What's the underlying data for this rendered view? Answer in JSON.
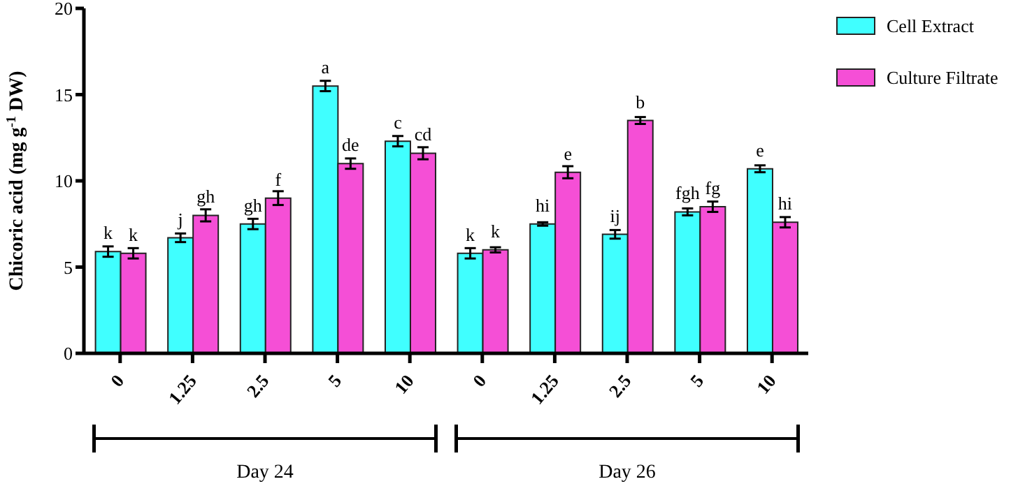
{
  "chart_data": {
    "type": "bar",
    "ylabel": "Chicoric acid (mg g$^{-1}$ DW)",
    "categories": [
      "0",
      "1.25",
      "2.5",
      "5",
      "10",
      "0",
      "1.25",
      "2.5",
      "5",
      "10"
    ],
    "series": [
      {
        "name": "Cell Extract",
        "color": "#40ffff",
        "values": [
          5.9,
          6.7,
          7.5,
          15.5,
          12.3,
          5.8,
          7.5,
          6.9,
          8.2,
          10.7
        ],
        "errors": [
          0.3,
          0.25,
          0.3,
          0.3,
          0.3,
          0.3,
          0.1,
          0.25,
          0.2,
          0.2
        ],
        "value_labels": [
          "k",
          "j",
          "gh",
          "a",
          "c",
          "k",
          "hi",
          "ij",
          "fgh",
          "e"
        ]
      },
      {
        "name": "Culture Filtrate",
        "color": "#f54fd6",
        "values": [
          5.8,
          8.0,
          9.0,
          11.0,
          11.6,
          6.0,
          10.5,
          13.5,
          8.5,
          7.6
        ],
        "errors": [
          0.3,
          0.35,
          0.4,
          0.3,
          0.35,
          0.15,
          0.35,
          0.2,
          0.3,
          0.3
        ],
        "value_labels": [
          "k",
          "gh",
          "f",
          "de",
          "cd",
          "k",
          "e",
          "b",
          "fg",
          "hi"
        ]
      }
    ],
    "ylim": [
      0,
      20
    ],
    "yticks": [
      0,
      5,
      10,
      15,
      20
    ],
    "grid": false,
    "legend": "top right",
    "annotations": [
      "Day 24",
      "Day 26"
    ]
  }
}
